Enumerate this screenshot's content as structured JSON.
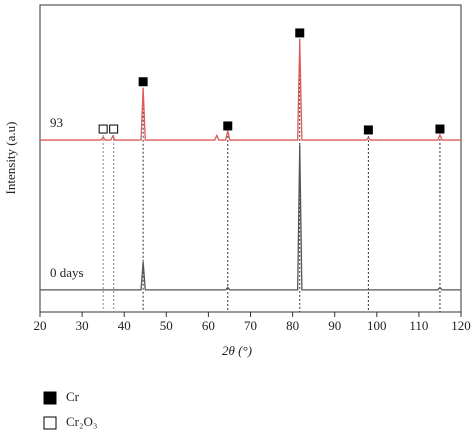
{
  "chart_data": {
    "type": "line",
    "x_label": "2θ (°)",
    "y_label": "Intensity (a.u)",
    "xlim": [
      20,
      120
    ],
    "xticks": [
      20,
      30,
      40,
      50,
      60,
      70,
      80,
      90,
      100,
      110,
      120
    ],
    "ylim": [
      0,
      100
    ],
    "series": [
      {
        "name": "93",
        "color": "#e05a5a",
        "x": [
          20,
          34.5,
          35,
          35.5,
          36.8,
          37.3,
          37.8,
          44,
          44.5,
          45,
          61.5,
          62,
          62.5,
          64.1,
          64.6,
          65.1,
          81.2,
          81.7,
          82.2,
          97.5,
          98,
          98.5,
          114.5,
          115,
          115.5,
          120
        ],
        "values": [
          56,
          56,
          57,
          56,
          56,
          57.3,
          56,
          56,
          73,
          56,
          56,
          57.5,
          56,
          56,
          59,
          56,
          56,
          88.6,
          56,
          56,
          56.8,
          56,
          56,
          57.7,
          56,
          56
        ]
      },
      {
        "name": "0 days",
        "color": "#555555",
        "x": [
          20,
          44,
          44.5,
          45,
          64.1,
          64.6,
          65.1,
          81.2,
          81.7,
          82.2,
          114.5,
          115,
          115.5,
          120
        ],
        "values": [
          7.2,
          7.2,
          16.3,
          7.2,
          7.2,
          8,
          7.2,
          7.2,
          54.4,
          7.2,
          7.2,
          8,
          7.2,
          7.2
        ]
      }
    ],
    "markers": [
      {
        "name": "Cr",
        "filled": true,
        "x": [
          44.5,
          64.6,
          81.7,
          98,
          115
        ],
        "y": [
          75,
          60.6,
          90.9,
          59.3,
          59.6
        ]
      },
      {
        "name": "Cr₂O₃",
        "filled": false,
        "x": [
          35,
          37.5
        ],
        "y": [
          59.6,
          59.6
        ]
      }
    ]
  }
}
